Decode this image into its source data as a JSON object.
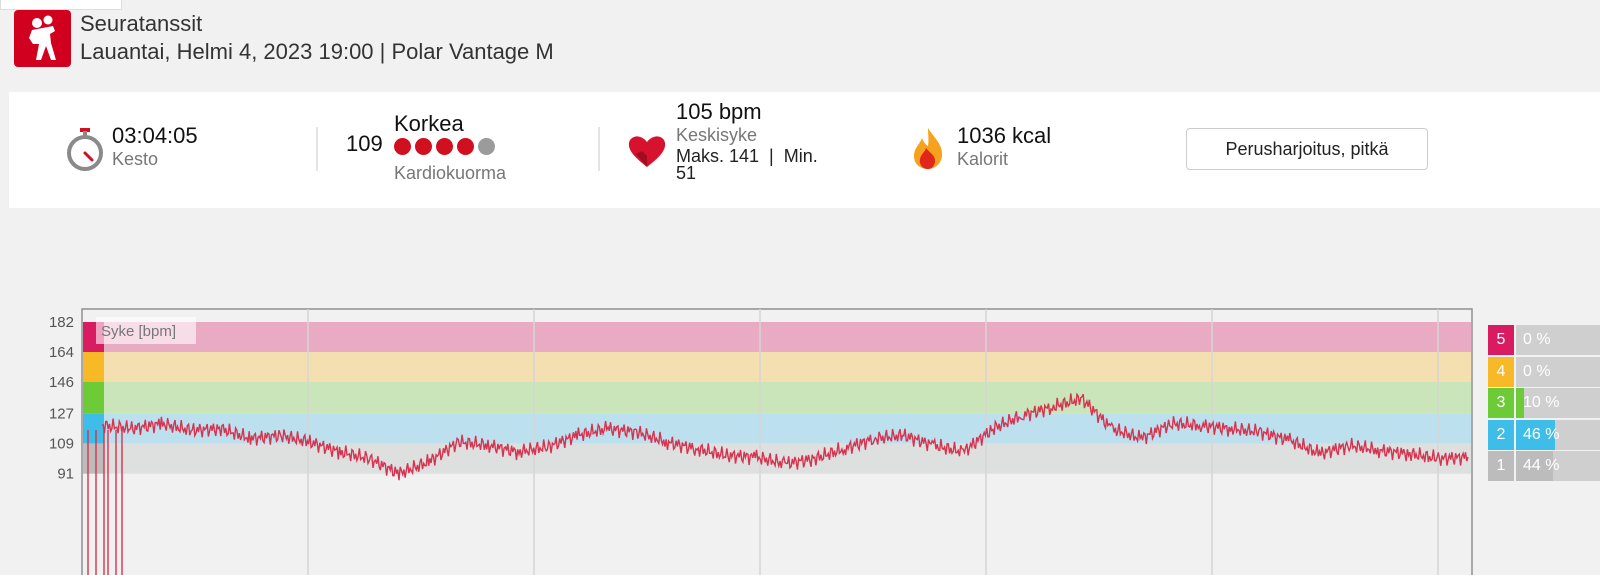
{
  "header": {
    "sport_icon": "dancing-couple-icon",
    "sport_name": "Seuratanssit",
    "session_line": "Lauantai, Helmi 4, 2023 19:00 | Polar Vantage M"
  },
  "summary": {
    "duration": {
      "icon": "stopwatch-icon",
      "value": "03:04:05",
      "label": "Kesto"
    },
    "cardio_load": {
      "value": "109",
      "level": "Korkea",
      "label": "Kardiokuorma",
      "dots_filled": 4,
      "dots_total": 5,
      "dot_color": "#d0101f",
      "dot_empty_color": "#9b9b9b"
    },
    "heart_rate": {
      "icon": "heart-icon",
      "avg": "105 bpm",
      "label": "Keskisyke",
      "max_min": "Maks. 141  |  Min.",
      "min_value": "51"
    },
    "calories": {
      "icon": "flame-icon",
      "value": "1036 kcal",
      "label": "Kalorit"
    },
    "training_type": "Perusharjoitus, pitkä"
  },
  "chart_data": {
    "type": "line",
    "title": "Syke [bpm]",
    "y_ticks": [
      "182",
      "164",
      "146",
      "127",
      "109",
      "91"
    ],
    "zones": [
      {
        "zone": "5",
        "from": 164,
        "to": 182,
        "color": "#e8abc3",
        "marker": "#d91b62"
      },
      {
        "zone": "4",
        "from": 146,
        "to": 164,
        "color": "#f3dfb0",
        "marker": "#f7b927"
      },
      {
        "zone": "3",
        "from": 127,
        "to": 146,
        "color": "#c9e5b9",
        "marker": "#6ccb36"
      },
      {
        "zone": "2",
        "from": 109,
        "to": 127,
        "color": "#bde0ee",
        "marker": "#3ebde8"
      },
      {
        "zone": "1",
        "from": 91,
        "to": 109,
        "color": "#dedfdf",
        "marker": "#bcbcbc"
      }
    ],
    "series": [
      {
        "line_color": "#d6334f",
        "x_minutes": [
          0,
          4,
          8,
          12,
          16,
          20,
          24,
          28,
          32,
          36,
          40,
          44,
          48,
          52,
          56,
          60,
          64,
          68,
          72,
          76,
          80,
          84,
          88,
          92,
          96,
          100,
          104,
          108,
          112,
          116,
          120,
          124,
          128,
          132,
          136,
          140,
          144,
          148,
          152,
          156,
          160,
          164,
          168,
          172,
          176,
          180,
          184
        ],
        "values": [
          120,
          118,
          121,
          117,
          118,
          112,
          114,
          110,
          104,
          100,
          91,
          98,
          110,
          108,
          104,
          107,
          114,
          118,
          116,
          110,
          106,
          102,
          101,
          97,
          100,
          106,
          112,
          114,
          108,
          104,
          118,
          126,
          131,
          136,
          118,
          112,
          121,
          120,
          118,
          116,
          111,
          103,
          108,
          105,
          103,
          100,
          101
        ]
      }
    ]
  },
  "zone_distribution": [
    {
      "zone": "5",
      "percent": "0 %",
      "fraction": 0.0,
      "color": "#d91b62"
    },
    {
      "zone": "4",
      "percent": "0 %",
      "fraction": 0.0,
      "color": "#f7b927"
    },
    {
      "zone": "3",
      "percent": "10 %",
      "fraction": 0.1,
      "color": "#6ccb36"
    },
    {
      "zone": "2",
      "percent": "46 %",
      "fraction": 0.46,
      "color": "#3ebde8"
    },
    {
      "zone": "1",
      "percent": "44 %",
      "fraction": 0.44,
      "color": "#bcbcbc"
    }
  ]
}
